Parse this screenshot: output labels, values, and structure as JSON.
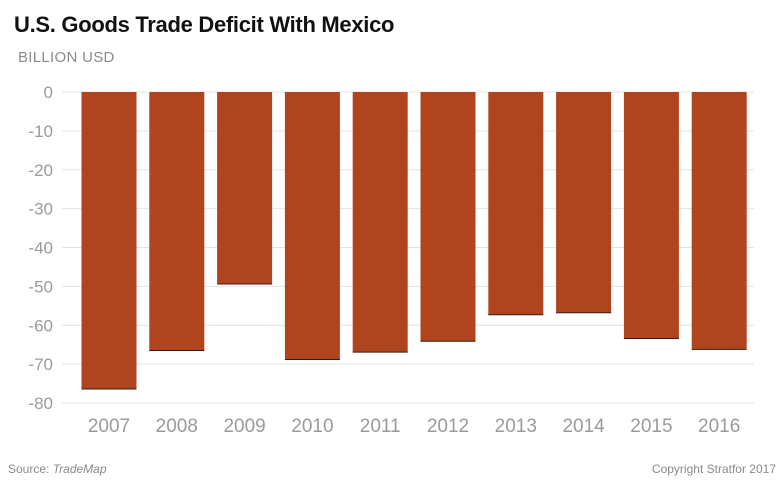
{
  "chart_data": {
    "type": "bar",
    "title": "U.S. Goods Trade Deficit With Mexico",
    "ylabel": "BILLION USD",
    "xlabel": "",
    "categories": [
      "2007",
      "2008",
      "2009",
      "2010",
      "2011",
      "2012",
      "2013",
      "2014",
      "2015",
      "2016"
    ],
    "values": [
      -76.4,
      -66.5,
      -49.4,
      -68.8,
      -66.9,
      -64.1,
      -57.3,
      -56.8,
      -63.4,
      -66.2
    ],
    "ylim": [
      -80,
      0
    ],
    "yticks": [
      "0",
      "-10",
      "-20",
      "-30",
      "-40",
      "-50",
      "-60",
      "-70",
      "-80"
    ],
    "grid": true,
    "bar_color": "#b0441f"
  },
  "source_label": "Source: ",
  "source_name": "TradeMap",
  "copyright": "Copyright Stratfor 2017"
}
